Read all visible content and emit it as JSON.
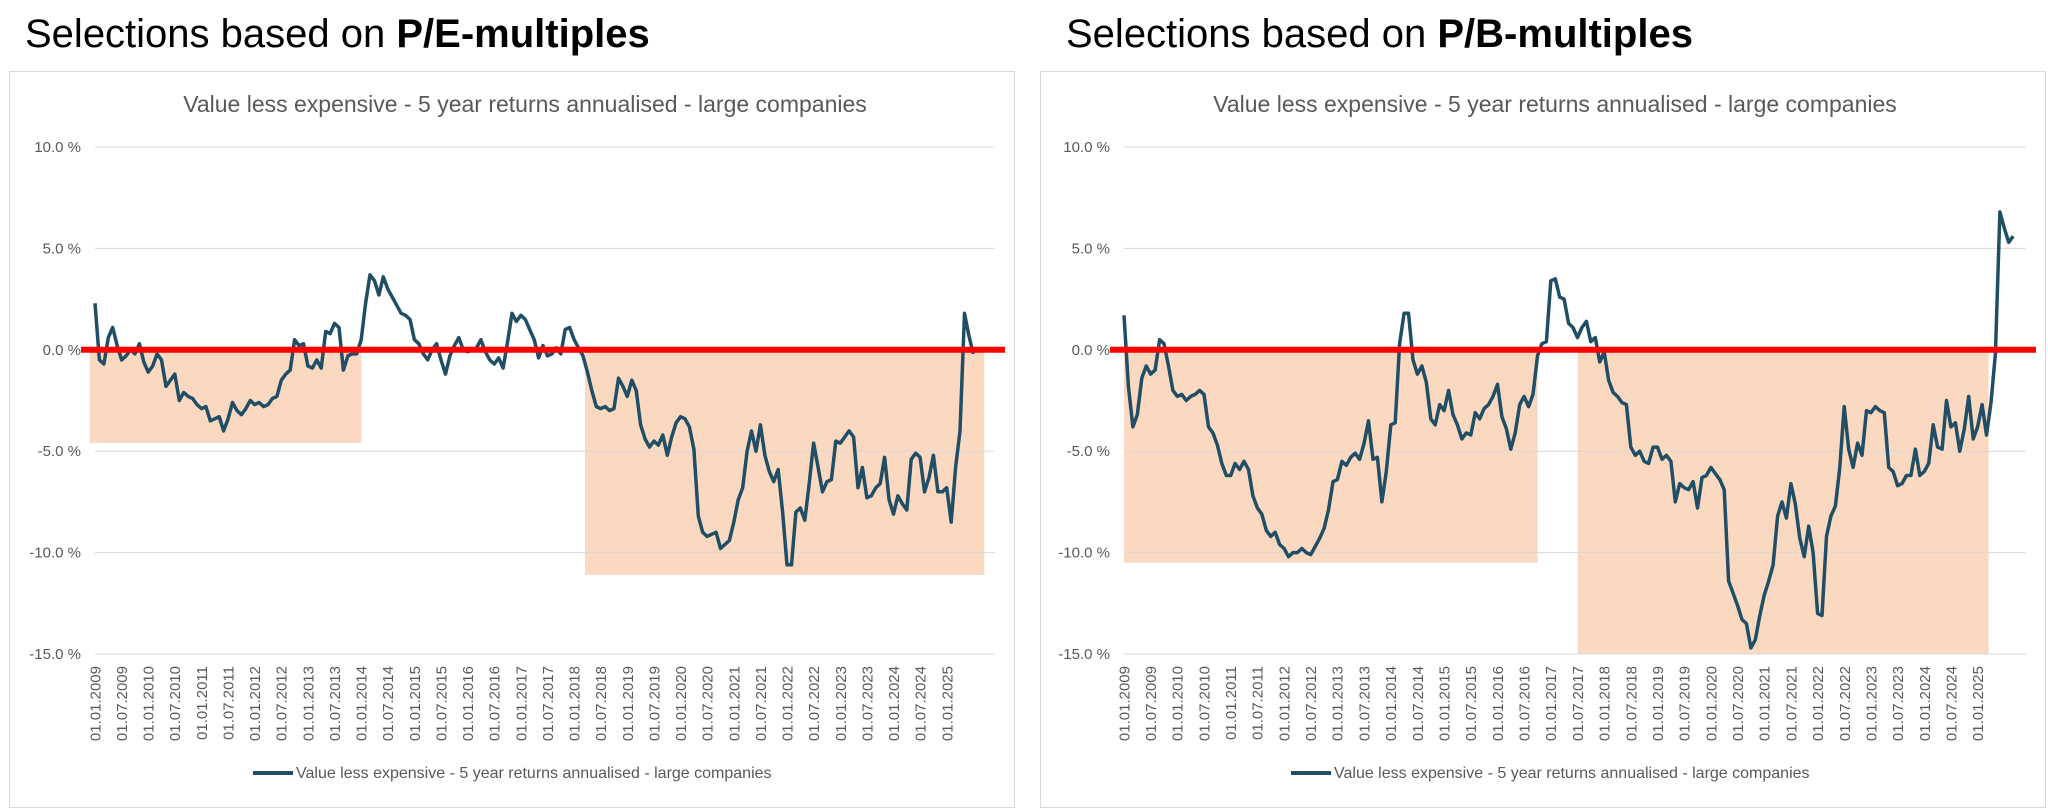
{
  "headings": [
    {
      "prefix": "Selections based on ",
      "bold": "P/E-multiples"
    },
    {
      "prefix": "Selections based on ",
      "bold": "P/B-multiples"
    }
  ],
  "colors": {
    "series": "#1f4e65",
    "zero_line": "#ff0000",
    "shade": "#fbd9c1",
    "grid": "#d9d9d9",
    "text": "#595959"
  },
  "chart_data": [
    {
      "type": "line",
      "title": "Value less expensive - 5 year returns annualised - large companies",
      "legend": "Value less expensive - 5 year returns annualised - large companies",
      "legend_position": "bottom",
      "xlabel": "",
      "ylabel": "",
      "ylim": [
        -15,
        10
      ],
      "yticks": [
        10,
        5,
        0,
        -5,
        -10,
        -15
      ],
      "ytick_labels": [
        "10.0 %",
        "5.0 %",
        "0.0 %",
        "-5.0 %",
        "-10.0 %",
        "-15.0 %"
      ],
      "x_start": 2009.0,
      "x_step": 0.0833,
      "xlim": [
        2009.0,
        2025.9
      ],
      "xtick_values": [
        2009.0,
        2009.5,
        2010.0,
        2010.5,
        2011.0,
        2011.5,
        2012.0,
        2012.5,
        2013.0,
        2013.5,
        2014.0,
        2014.5,
        2015.0,
        2015.5,
        2016.0,
        2016.5,
        2017.0,
        2017.5,
        2018.0,
        2018.5,
        2019.0,
        2019.5,
        2020.0,
        2020.5,
        2021.0,
        2021.5,
        2022.0,
        2022.5,
        2023.0,
        2023.5,
        2024.0,
        2024.5,
        2025.0
      ],
      "xtick_labels": [
        "01.01.2009",
        "01.07.2009",
        "01.01.2010",
        "01.07.2010",
        "01.01.2011",
        "01.07.2011",
        "01.01.2012",
        "01.07.2012",
        "01.01.2013",
        "01.07.2013",
        "01.01.2014",
        "01.07.2014",
        "01.01.2015",
        "01.07.2015",
        "01.01.2016",
        "01.07.2016",
        "01.01.2017",
        "01.07.2017",
        "01.01.2018",
        "01.07.2018",
        "01.01.2019",
        "01.07.2019",
        "01.01.2020",
        "01.07.2020",
        "01.01.2021",
        "01.07.2021",
        "01.01.2022",
        "01.07.2022",
        "01.01.2023",
        "01.07.2023",
        "01.01.2024",
        "01.07.2024",
        "01.01.2025"
      ],
      "shaded_regions": [
        {
          "x0": 2008.9,
          "x1": 2014.0,
          "y0": -4.6,
          "y1": 0
        },
        {
          "x0": 2018.2,
          "x1": 2025.7,
          "y0": -11.1,
          "y1": 0
        }
      ],
      "series": [
        {
          "name": "Value less expensive - 5 year returns annualised - large companies",
          "values": [
            2.3,
            -0.5,
            -0.7,
            0.6,
            1.1,
            0.2,
            -0.5,
            -0.3,
            0.0,
            -0.2,
            0.3,
            -0.6,
            -1.1,
            -0.8,
            -0.2,
            -0.5,
            -1.8,
            -1.5,
            -1.2,
            -2.5,
            -2.1,
            -2.3,
            -2.4,
            -2.7,
            -2.9,
            -2.8,
            -3.5,
            -3.4,
            -3.3,
            -4.0,
            -3.4,
            -2.6,
            -3.0,
            -3.2,
            -2.9,
            -2.5,
            -2.7,
            -2.6,
            -2.8,
            -2.7,
            -2.4,
            -2.3,
            -1.5,
            -1.2,
            -1.0,
            0.5,
            0.2,
            0.3,
            -0.8,
            -0.9,
            -0.5,
            -0.9,
            0.9,
            0.8,
            1.3,
            1.1,
            -1.0,
            -0.3,
            -0.2,
            -0.2,
            0.5,
            2.3,
            3.7,
            3.4,
            2.7,
            3.6,
            3.0,
            2.6,
            2.2,
            1.8,
            1.7,
            1.5,
            0.5,
            0.3,
            -0.2,
            -0.5,
            0.0,
            0.3,
            -0.5,
            -1.2,
            -0.3,
            0.2,
            0.6,
            0.0,
            -0.1,
            0.0,
            0.1,
            0.5,
            -0.1,
            -0.5,
            -0.7,
            -0.4,
            -0.9,
            0.4,
            1.8,
            1.4,
            1.7,
            1.5,
            1.0,
            0.5,
            -0.4,
            0.2,
            -0.3,
            -0.2,
            0.1,
            -0.2,
            1.0,
            1.1,
            0.5,
            0.1,
            -0.3,
            -1.1,
            -2.0,
            -2.8,
            -2.9,
            -2.8,
            -3.0,
            -2.9,
            -1.4,
            -1.8,
            -2.3,
            -1.5,
            -2.0,
            -3.7,
            -4.4,
            -4.8,
            -4.5,
            -4.7,
            -4.2,
            -5.2,
            -4.3,
            -3.6,
            -3.3,
            -3.4,
            -3.8,
            -4.9,
            -8.2,
            -9.0,
            -9.2,
            -9.1,
            -9.0,
            -9.8,
            -9.6,
            -9.4,
            -8.5,
            -7.4,
            -6.8,
            -5.0,
            -4.0,
            -5.0,
            -3.7,
            -5.2,
            -6.0,
            -6.5,
            -5.9,
            -8.0,
            -10.6,
            -10.6,
            -8.0,
            -7.8,
            -8.4,
            -6.6,
            -4.6,
            -5.8,
            -7.0,
            -6.5,
            -6.4,
            -4.5,
            -4.6,
            -4.3,
            -4.0,
            -4.3,
            -6.8,
            -5.8,
            -7.3,
            -7.2,
            -6.8,
            -6.6,
            -5.3,
            -7.4,
            -8.1,
            -7.2,
            -7.6,
            -7.9,
            -5.4,
            -5.1,
            -5.3,
            -7.0,
            -6.3,
            -5.2,
            -7.0,
            -7.0,
            -6.8,
            -8.5,
            -5.8,
            -4.0,
            1.8,
            0.7,
            -0.2
          ]
        }
      ]
    },
    {
      "type": "line",
      "title": "Value less expensive - 5 year returns annualised - large companies",
      "legend": "Value less expensive - 5 year returns annualised - large companies",
      "legend_position": "bottom",
      "xlabel": "",
      "ylabel": "",
      "ylim": [
        -15,
        10
      ],
      "yticks": [
        10,
        5,
        0,
        -5,
        -10,
        -15
      ],
      "ytick_labels": [
        "10.0 %",
        "5.0 %",
        "0.0 %",
        "-5.0 %",
        "-10.0 %",
        "-15.0 %"
      ],
      "x_start": 2009.0,
      "x_step": 0.0833,
      "xlim": [
        2009.0,
        2025.9
      ],
      "xtick_values": [
        2009.0,
        2009.5,
        2010.0,
        2010.5,
        2011.0,
        2011.5,
        2012.0,
        2012.5,
        2013.0,
        2013.5,
        2014.0,
        2014.5,
        2015.0,
        2015.5,
        2016.0,
        2016.5,
        2017.0,
        2017.5,
        2018.0,
        2018.5,
        2019.0,
        2019.5,
        2020.0,
        2020.5,
        2021.0,
        2021.5,
        2022.0,
        2022.5,
        2023.0,
        2023.5,
        2024.0,
        2024.5,
        2025.0
      ],
      "xtick_labels": [
        "01.01.2009",
        "01.07.2009",
        "01.01.2010",
        "01.07.2010",
        "01.01.2011",
        "01.07.2011",
        "01.01.2012",
        "01.07.2012",
        "01.01.2013",
        "01.07.2013",
        "01.01.2014",
        "01.07.2014",
        "01.01.2015",
        "01.07.2015",
        "01.01.2016",
        "01.07.2016",
        "01.01.2017",
        "01.07.2017",
        "01.01.2018",
        "01.07.2018",
        "01.01.2019",
        "01.07.2019",
        "01.01.2020",
        "01.07.2020",
        "01.01.2021",
        "01.07.2021",
        "01.01.2022",
        "01.07.2022",
        "01.01.2023",
        "01.07.2023",
        "01.01.2024",
        "01.07.2024",
        "01.01.2025"
      ],
      "shaded_regions": [
        {
          "x0": 2009.0,
          "x1": 2016.75,
          "y0": -10.5,
          "y1": 0
        },
        {
          "x0": 2017.5,
          "x1": 2025.2,
          "y0": -15.0,
          "y1": 0
        }
      ],
      "series": [
        {
          "name": "Value less expensive - 5 year returns annualised - large companies",
          "values": [
            1.7,
            -1.8,
            -3.8,
            -3.2,
            -1.4,
            -0.8,
            -1.2,
            -1.0,
            0.5,
            0.3,
            -0.8,
            -2.0,
            -2.3,
            -2.2,
            -2.5,
            -2.3,
            -2.2,
            -2.0,
            -2.2,
            -3.8,
            -4.1,
            -4.7,
            -5.6,
            -6.2,
            -6.2,
            -5.6,
            -5.9,
            -5.5,
            -5.9,
            -7.2,
            -7.8,
            -8.1,
            -8.9,
            -9.2,
            -9.0,
            -9.6,
            -9.8,
            -10.2,
            -10.0,
            -10.0,
            -9.8,
            -10.0,
            -10.1,
            -9.7,
            -9.3,
            -8.8,
            -7.9,
            -6.5,
            -6.4,
            -5.5,
            -5.7,
            -5.3,
            -5.1,
            -5.4,
            -4.6,
            -3.5,
            -5.4,
            -5.3,
            -7.5,
            -6.0,
            -3.7,
            -3.6,
            0.3,
            1.8,
            1.8,
            -0.5,
            -1.2,
            -0.8,
            -1.6,
            -3.4,
            -3.7,
            -2.7,
            -3.0,
            -2.0,
            -3.2,
            -3.7,
            -4.4,
            -4.1,
            -4.2,
            -3.1,
            -3.4,
            -2.9,
            -2.7,
            -2.3,
            -1.7,
            -3.3,
            -3.9,
            -4.9,
            -4.1,
            -2.7,
            -2.3,
            -2.8,
            -2.2,
            -0.3,
            0.3,
            0.4,
            3.4,
            3.5,
            2.6,
            2.5,
            1.3,
            1.1,
            0.6,
            1.1,
            1.4,
            0.4,
            0.6,
            -0.6,
            -0.1,
            -1.5,
            -2.1,
            -2.3,
            -2.6,
            -2.7,
            -4.8,
            -5.2,
            -5.0,
            -5.5,
            -5.6,
            -4.8,
            -4.8,
            -5.4,
            -5.2,
            -5.5,
            -7.5,
            -6.6,
            -6.8,
            -6.9,
            -6.5,
            -7.8,
            -6.3,
            -6.2,
            -5.8,
            -6.1,
            -6.4,
            -6.9,
            -11.4,
            -12.0,
            -12.6,
            -13.3,
            -13.5,
            -14.7,
            -14.3,
            -13.1,
            -12.1,
            -11.4,
            -10.6,
            -8.2,
            -7.5,
            -8.3,
            -6.6,
            -7.6,
            -9.3,
            -10.2,
            -8.7,
            -10.0,
            -13.0,
            -13.1,
            -9.2,
            -8.2,
            -7.7,
            -5.8,
            -2.8,
            -4.9,
            -5.8,
            -4.6,
            -5.2,
            -3.0,
            -3.1,
            -2.8,
            -3.0,
            -3.1,
            -5.8,
            -6.0,
            -6.7,
            -6.6,
            -6.2,
            -6.2,
            -4.9,
            -6.2,
            -6.0,
            -5.6,
            -3.7,
            -4.8,
            -4.9,
            -2.5,
            -3.8,
            -3.6,
            -5.0,
            -3.9,
            -2.3,
            -4.4,
            -3.8,
            -2.7,
            -4.2,
            -2.6,
            -0.2,
            6.8,
            6.0,
            5.3,
            5.6
          ]
        }
      ]
    }
  ]
}
